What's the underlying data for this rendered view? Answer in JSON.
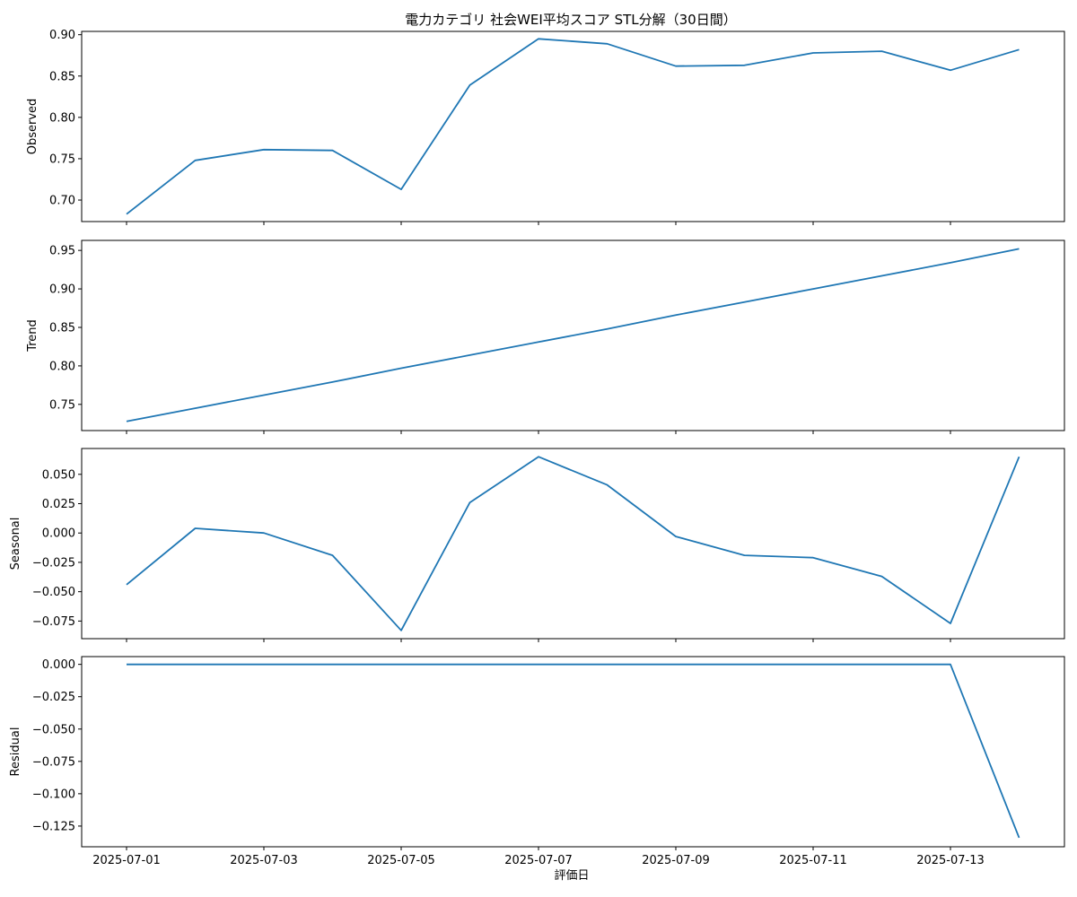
{
  "figure": {
    "title": "電力カテゴリ 社会WEI平均スコア STL分解（30日間）",
    "xlabel": "評価日",
    "line_color": "#1f77b4"
  },
  "chart_data": [
    {
      "type": "line",
      "ylabel": "Observed",
      "x": [
        "2025-07-01",
        "2025-07-02",
        "2025-07-03",
        "2025-07-04",
        "2025-07-05",
        "2025-07-06",
        "2025-07-07",
        "2025-07-08",
        "2025-07-09",
        "2025-07-10",
        "2025-07-11",
        "2025-07-12",
        "2025-07-13",
        "2025-07-14"
      ],
      "values": [
        0.683,
        0.748,
        0.761,
        0.76,
        0.713,
        0.839,
        0.895,
        0.889,
        0.862,
        0.863,
        0.878,
        0.88,
        0.857,
        0.882
      ],
      "ylim": [
        0.674,
        0.904
      ],
      "yticks": [
        "0.70",
        "0.75",
        "0.80",
        "0.85",
        "0.90"
      ],
      "xticks": [
        "2025-07-01",
        "2025-07-03",
        "2025-07-05",
        "2025-07-07",
        "2025-07-09",
        "2025-07-11",
        "2025-07-13"
      ],
      "show_xtick_labels": false,
      "grid": false
    },
    {
      "type": "line",
      "ylabel": "Trend",
      "x": [
        "2025-07-01",
        "2025-07-02",
        "2025-07-03",
        "2025-07-04",
        "2025-07-05",
        "2025-07-06",
        "2025-07-07",
        "2025-07-08",
        "2025-07-09",
        "2025-07-10",
        "2025-07-11",
        "2025-07-12",
        "2025-07-13",
        "2025-07-14"
      ],
      "values": [
        0.728,
        0.745,
        0.762,
        0.779,
        0.797,
        0.814,
        0.831,
        0.848,
        0.866,
        0.883,
        0.9,
        0.917,
        0.934,
        0.952
      ],
      "ylim": [
        0.716,
        0.963
      ],
      "yticks": [
        "0.75",
        "0.80",
        "0.85",
        "0.90",
        "0.95"
      ],
      "xticks": [
        "2025-07-01",
        "2025-07-03",
        "2025-07-05",
        "2025-07-07",
        "2025-07-09",
        "2025-07-11",
        "2025-07-13"
      ],
      "show_xtick_labels": false,
      "grid": false
    },
    {
      "type": "line",
      "ylabel": "Seasonal",
      "x": [
        "2025-07-01",
        "2025-07-02",
        "2025-07-03",
        "2025-07-04",
        "2025-07-05",
        "2025-07-06",
        "2025-07-07",
        "2025-07-08",
        "2025-07-09",
        "2025-07-10",
        "2025-07-11",
        "2025-07-12",
        "2025-07-13",
        "2025-07-14"
      ],
      "values": [
        -0.044,
        0.004,
        0.0,
        -0.019,
        -0.083,
        0.026,
        0.065,
        0.041,
        -0.003,
        -0.019,
        -0.021,
        -0.037,
        -0.077,
        0.065
      ],
      "ylim": [
        -0.09,
        0.072
      ],
      "yticks": [
        "0.050",
        "0.025",
        "0.000",
        "−0.025",
        "−0.050",
        "−0.075"
      ],
      "ytick_values": [
        0.05,
        0.025,
        0.0,
        -0.025,
        -0.05,
        -0.075
      ],
      "xticks": [
        "2025-07-01",
        "2025-07-03",
        "2025-07-05",
        "2025-07-07",
        "2025-07-09",
        "2025-07-11",
        "2025-07-13"
      ],
      "show_xtick_labels": false,
      "grid": false
    },
    {
      "type": "line",
      "ylabel": "Residual",
      "x": [
        "2025-07-01",
        "2025-07-02",
        "2025-07-03",
        "2025-07-04",
        "2025-07-05",
        "2025-07-06",
        "2025-07-07",
        "2025-07-08",
        "2025-07-09",
        "2025-07-10",
        "2025-07-11",
        "2025-07-12",
        "2025-07-13",
        "2025-07-14"
      ],
      "values": [
        0.0,
        0.0,
        0.0,
        0.0,
        0.0,
        0.0,
        0.0,
        0.0,
        0.0,
        0.0,
        0.0,
        0.0,
        0.0,
        -0.134
      ],
      "ylim": [
        -0.141,
        0.006
      ],
      "yticks": [
        "0.000",
        "−0.025",
        "−0.050",
        "−0.075",
        "−0.100",
        "−0.125"
      ],
      "ytick_values": [
        0.0,
        -0.025,
        -0.05,
        -0.075,
        -0.1,
        -0.125
      ],
      "xticks": [
        "2025-07-01",
        "2025-07-03",
        "2025-07-05",
        "2025-07-07",
        "2025-07-09",
        "2025-07-11",
        "2025-07-13"
      ],
      "show_xtick_labels": true,
      "grid": false
    }
  ]
}
